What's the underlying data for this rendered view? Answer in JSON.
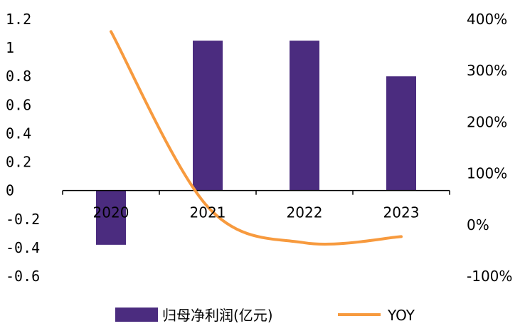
{
  "chart_data": {
    "type": "bar",
    "categories": [
      "2020",
      "2021",
      "2022",
      "2023"
    ],
    "series": [
      {
        "name": "归母净利润(亿元)",
        "type": "bar",
        "axis": "left",
        "color": "#4b2c7f",
        "values": [
          -0.38,
          1.05,
          1.05,
          0.8
        ]
      },
      {
        "name": "YOY",
        "type": "line",
        "axis": "right",
        "color": "#f79a3e",
        "values": [
          376,
          35,
          -35,
          -23
        ]
      }
    ],
    "ylim": [
      -0.6,
      1.2
    ],
    "yticks": [
      "1.2",
      "1",
      "0.8",
      "0.6",
      "0.4",
      "0.2",
      "0",
      "-0.2",
      "-0.4",
      "-0.6"
    ],
    "y2lim": [
      -100,
      400
    ],
    "y2ticks": [
      "400%",
      "300%",
      "200%",
      "100%",
      "0%",
      "-100%"
    ],
    "legend_position": "bottom",
    "grid": false
  }
}
